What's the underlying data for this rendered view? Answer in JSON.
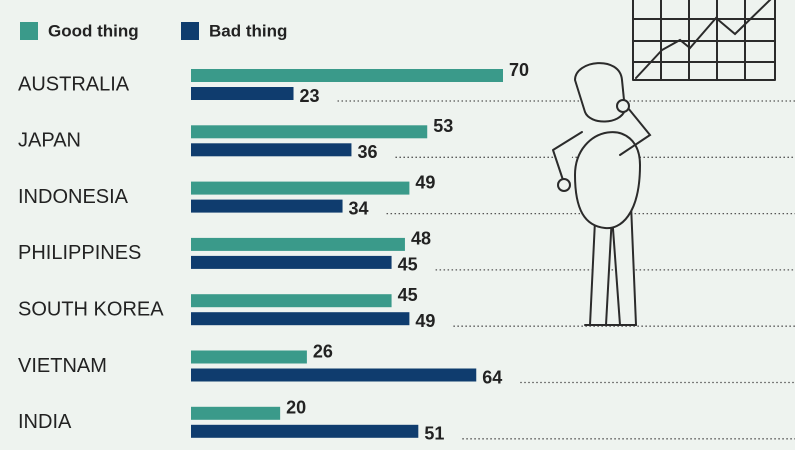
{
  "chart_data": {
    "type": "bar",
    "orientation": "horizontal",
    "categories": [
      "AUSTRALIA",
      "JAPAN",
      "INDONESIA",
      "PHILIPPINES",
      "SOUTH KOREA",
      "VIETNAM",
      "INDIA"
    ],
    "series": [
      {
        "name": "Good thing",
        "color": "#3a9a8a",
        "values": [
          70,
          53,
          49,
          48,
          45,
          26,
          20
        ]
      },
      {
        "name": "Bad thing",
        "color": "#0f3c6e",
        "values": [
          23,
          36,
          34,
          45,
          49,
          64,
          51
        ]
      }
    ]
  }
}
